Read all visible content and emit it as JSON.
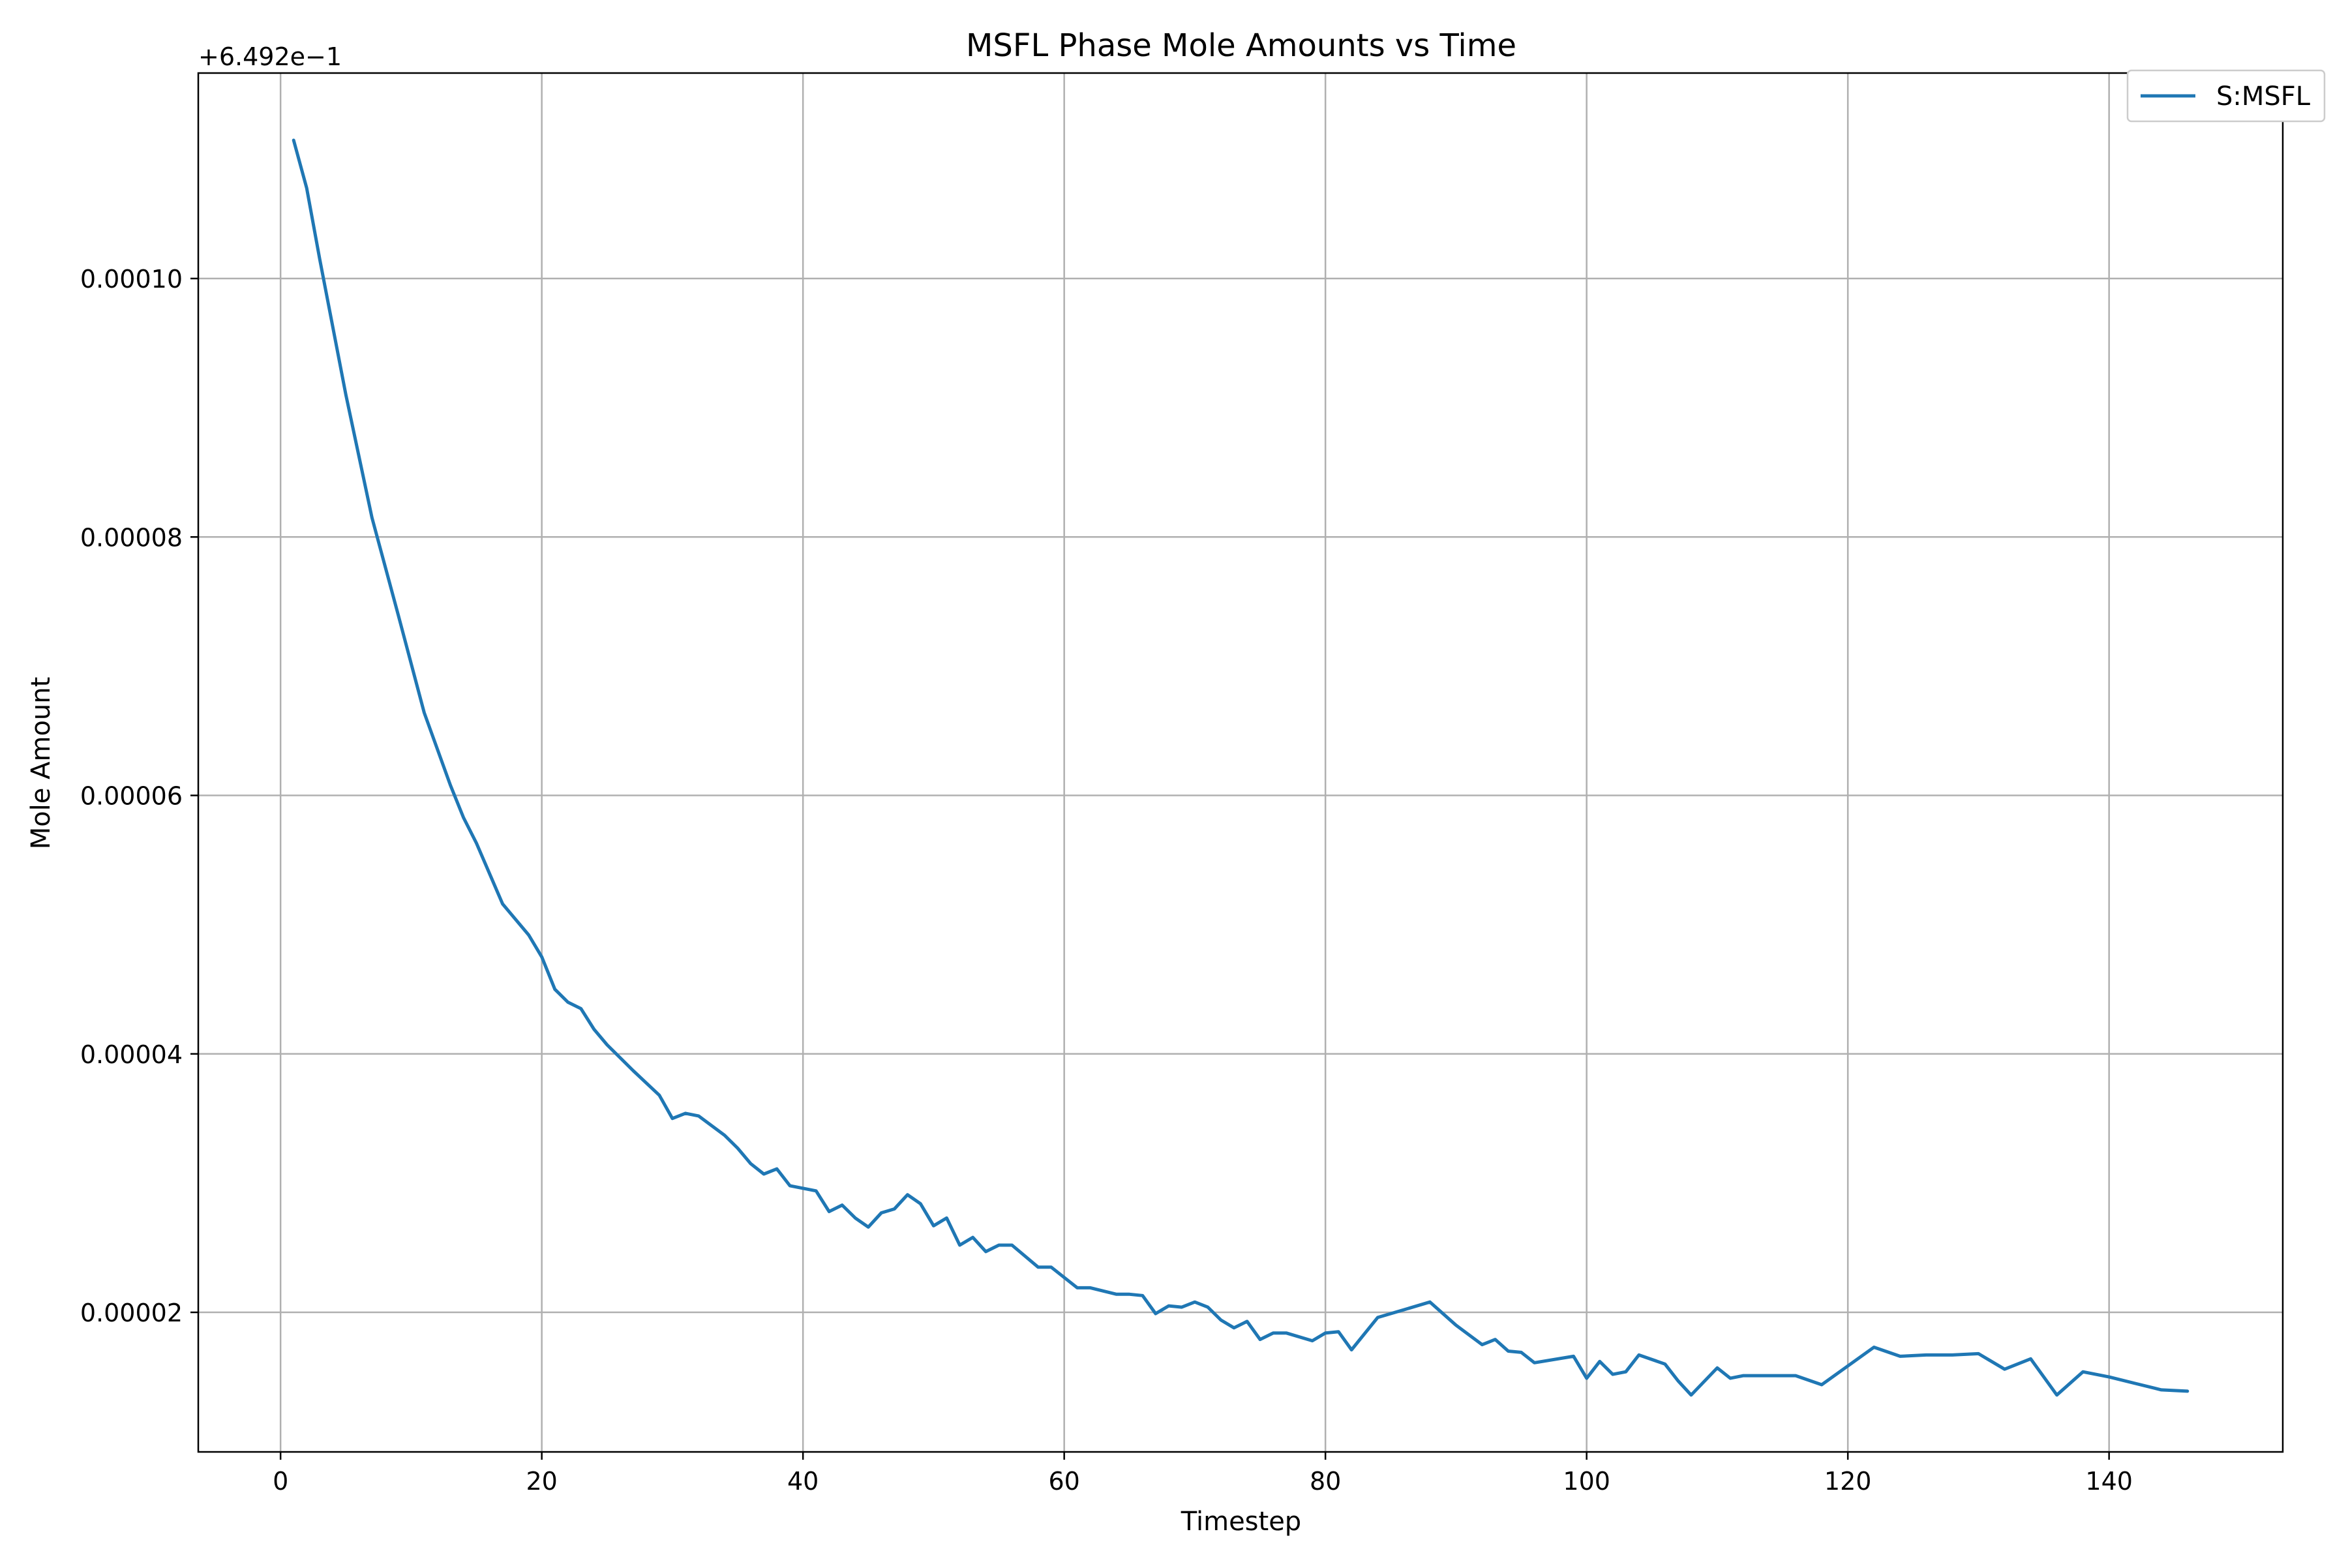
{
  "chart_data": {
    "type": "line",
    "title": "MSFL Phase Mole Amounts vs Time",
    "xlabel": "Timestep",
    "ylabel": "Mole Amount",
    "offset_label": "+6.492e−1",
    "xlim": [
      -6.3,
      153.3
    ],
    "ylim": [
      9.2e-06,
      0.0001159
    ],
    "x_ticks": [
      0,
      20,
      40,
      60,
      80,
      100,
      120,
      140
    ],
    "x_tick_labels": [
      "0",
      "20",
      "40",
      "60",
      "80",
      "100",
      "120",
      "140"
    ],
    "y_ticks": [
      2e-05,
      4e-05,
      6e-05,
      8e-05,
      0.0001
    ],
    "y_tick_labels": [
      "0.00002",
      "0.00004",
      "0.00006",
      "0.00008",
      "0.00010"
    ],
    "grid": true,
    "legend_position": "top-right",
    "color": "#1f77b4",
    "series": [
      {
        "name": "S:MSFL",
        "color": "#1f77b4",
        "x": [
          1,
          2,
          3,
          5,
          7,
          9,
          11,
          13,
          14,
          15,
          17,
          19,
          20,
          21,
          22,
          23,
          24,
          25,
          27,
          29,
          30,
          31,
          32,
          34,
          35,
          36,
          37,
          38,
          39,
          41,
          42,
          43,
          44,
          45,
          46,
          47,
          48,
          49,
          50,
          51,
          52,
          53,
          54,
          55,
          56,
          58,
          59,
          61,
          62,
          64,
          65,
          66,
          67,
          68,
          69,
          70,
          71,
          72,
          73,
          74,
          75,
          76,
          77,
          79,
          80,
          81,
          82,
          84,
          86,
          88,
          90,
          92,
          93,
          94,
          95,
          96,
          99,
          100,
          101,
          102,
          103,
          104,
          106,
          107,
          108,
          110,
          111,
          112,
          114,
          116,
          118,
          122,
          124,
          126,
          128,
          130,
          132,
          134,
          136,
          138,
          140,
          142,
          144,
          146
        ],
        "y": [
          0.0001107,
          0.000107,
          0.0001015,
          9.1e-05,
          8.15e-05,
          7.4e-05,
          6.64e-05,
          6.08e-05,
          5.83e-05,
          5.63e-05,
          5.16e-05,
          4.92e-05,
          4.75e-05,
          4.5e-05,
          4.4e-05,
          4.35e-05,
          4.19e-05,
          4.07e-05,
          3.87e-05,
          3.68e-05,
          3.5e-05,
          3.54e-05,
          3.52e-05,
          3.37e-05,
          3.27e-05,
          3.15e-05,
          3.07e-05,
          3.11e-05,
          2.98e-05,
          2.94e-05,
          2.78e-05,
          2.83e-05,
          2.73e-05,
          2.66e-05,
          2.77e-05,
          2.8e-05,
          2.91e-05,
          2.84e-05,
          2.67e-05,
          2.73e-05,
          2.52e-05,
          2.58e-05,
          2.47e-05,
          2.52e-05,
          2.52e-05,
          2.35e-05,
          2.35e-05,
          2.19e-05,
          2.19e-05,
          2.14e-05,
          2.14e-05,
          2.13e-05,
          1.99e-05,
          2.05e-05,
          2.04e-05,
          2.08e-05,
          2.04e-05,
          1.94e-05,
          1.88e-05,
          1.93e-05,
          1.79e-05,
          1.84e-05,
          1.84e-05,
          1.78e-05,
          1.84e-05,
          1.85e-05,
          1.71e-05,
          1.96e-05,
          2.02e-05,
          2.08e-05,
          1.9e-05,
          1.75e-05,
          1.79e-05,
          1.7e-05,
          1.69e-05,
          1.61e-05,
          1.66e-05,
          1.49e-05,
          1.62e-05,
          1.52e-05,
          1.54e-05,
          1.67e-05,
          1.6e-05,
          1.47e-05,
          1.36e-05,
          1.57e-05,
          1.49e-05,
          1.51e-05,
          1.51e-05,
          1.51e-05,
          1.44e-05,
          1.73e-05,
          1.66e-05,
          1.67e-05,
          1.67e-05,
          1.68e-05,
          1.56e-05,
          1.64e-05,
          1.36e-05,
          1.54e-05,
          1.5e-05,
          1.45e-05,
          1.4e-05,
          1.39e-05
        ]
      }
    ]
  }
}
